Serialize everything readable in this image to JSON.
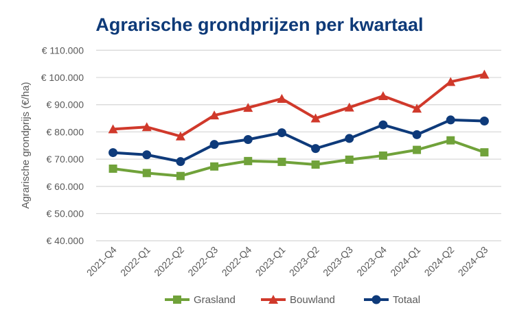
{
  "chart_data": {
    "type": "line",
    "title": "Agrarische grondprijzen per kwartaal",
    "xlabel": "",
    "ylabel": "Agrarische grondprijs (€/ha)",
    "ylim": [
      40000,
      110000
    ],
    "yticks": [
      40000,
      50000,
      60000,
      70000,
      80000,
      90000,
      100000,
      110000
    ],
    "ytick_labels": [
      "€ 40.000",
      "€ 50.000",
      "€ 60.000",
      "€ 70.000",
      "€ 80.000",
      "€ 90.000",
      "€ 100.000",
      "€ 110.000"
    ],
    "grid": true,
    "legend_position": "bottom",
    "categories": [
      "2021-Q4",
      "2022-Q1",
      "2022-Q2",
      "2022-Q3",
      "2022-Q4",
      "2023-Q1",
      "2023-Q2",
      "2023-Q3",
      "2023-Q4",
      "2024-Q1",
      "2024-Q2",
      "2024-Q3"
    ],
    "series": [
      {
        "name": "Grasland",
        "color": "#70A23A",
        "marker": "square",
        "values": [
          66500,
          64900,
          63800,
          67300,
          69300,
          69000,
          68000,
          69800,
          71300,
          73400,
          76900,
          72500
        ]
      },
      {
        "name": "Bouwland",
        "color": "#D0392B",
        "marker": "triangle",
        "values": [
          81000,
          81800,
          78400,
          86100,
          88900,
          92200,
          85000,
          89000,
          93200,
          88600,
          98400,
          101100
        ]
      },
      {
        "name": "Totaal",
        "color": "#0E3A7A",
        "marker": "circle",
        "values": [
          72400,
          71600,
          69100,
          75400,
          77200,
          79700,
          73900,
          77600,
          82600,
          79000,
          84400,
          84000
        ]
      }
    ]
  }
}
